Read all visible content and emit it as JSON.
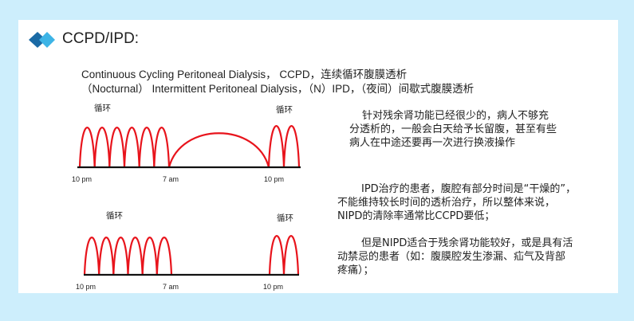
{
  "slide": {
    "title": "CCPD/IPD:",
    "logo_icon": "double-diamond-icon",
    "colors": {
      "background": "#cdeefc",
      "logo_dark": "#1a6aa5",
      "logo_light": "#3db4e6",
      "curve": "#e8141c",
      "axis": "#111111"
    },
    "intro": [
      "Continuous Cycling Peritoneal Dialysis， CCPD，连续循环腹膜透析",
      "（Nocturnal） Intermittent Peritoneal Dialysis，（N）IPD，（夜间）间歇式腹膜透析"
    ],
    "diagram_ccpd": {
      "cycle_label_left": "循环",
      "cycle_label_right": "循环",
      "time_labels": [
        "10 pm",
        "7 am",
        "10 pm"
      ],
      "night_cycles": 6,
      "day_dwell": 1,
      "evening_cycles": 2
    },
    "diagram_ipd": {
      "cycle_label_left": "循环",
      "cycle_label_right": "循环",
      "time_labels": [
        "10 pm",
        "7 am",
        "10 pm"
      ],
      "night_cycles": 6,
      "day_dwell": 0,
      "evening_cycles": 2
    },
    "para1": [
      "针对残余肾功能已经很少的，病人不够充",
      "分透析的，一般会白天给予长留腹，甚至有些",
      "病人在中途还要再一次进行换液操作"
    ],
    "para2": [
      "IPD治疗的患者，腹腔有部分时间是“干燥的”，",
      "不能维持较长时间的透析治疗，所以整体来说，",
      "NIPD的清除率通常比CCPD要低；"
    ],
    "para3": [
      "但是NIPD适合于残余肾功能较好，或是具有活",
      "动禁忌的患者（如：腹膜腔发生渗漏、疝气及背部",
      "疼痛）；"
    ]
  }
}
